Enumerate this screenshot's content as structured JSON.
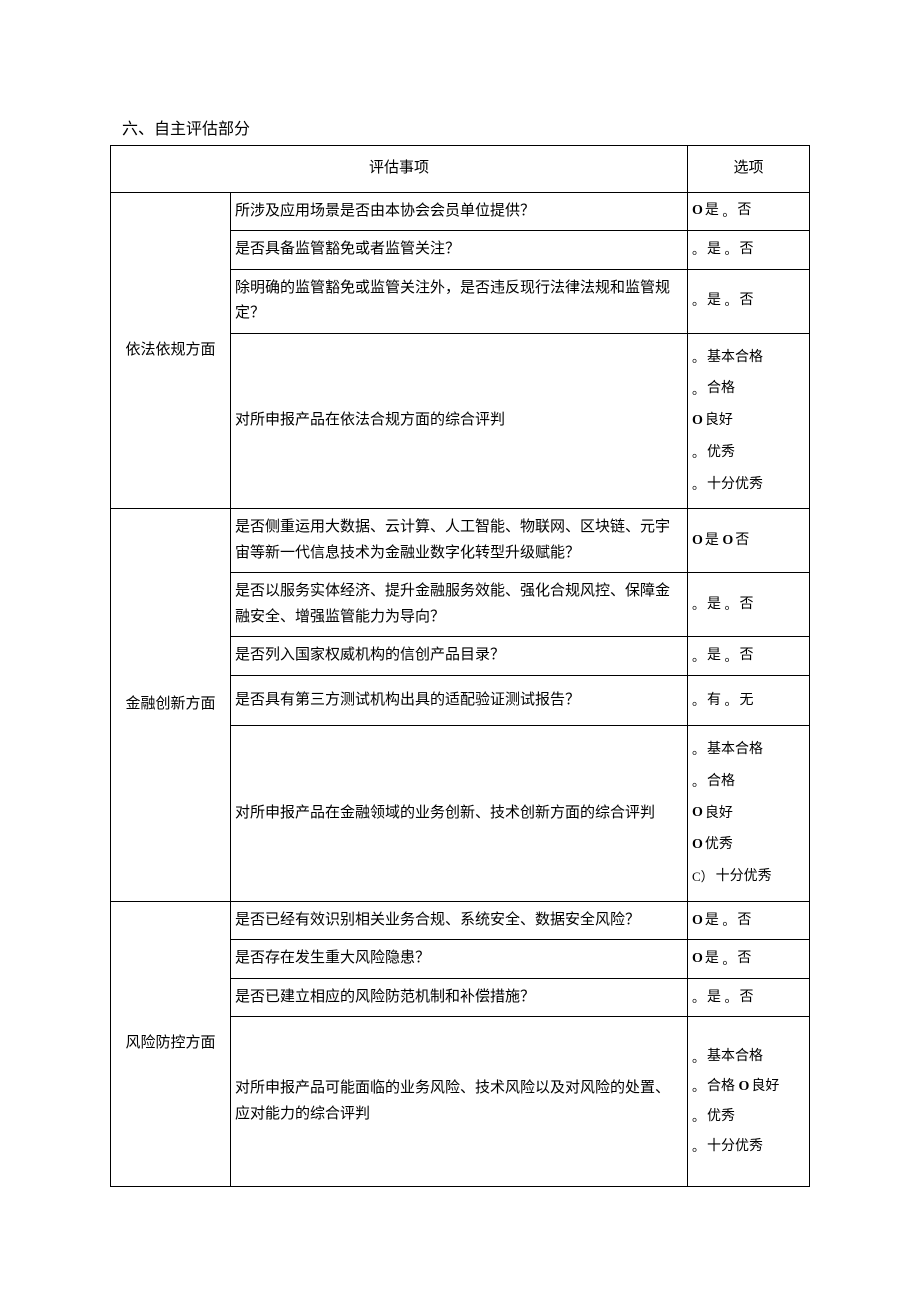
{
  "title": "六、自主评估部分",
  "headers": {
    "item": "评估事项",
    "option": "选项"
  },
  "marks": {
    "boldO": "O",
    "dot": "。",
    "C": "C）"
  },
  "groups": [
    {
      "category": "依法依规方面",
      "rows": [
        {
          "q": "所涉及应用场景是否由本协会会员单位提供？",
          "opts": [
            {
              "m": "boldO",
              "t": "是"
            },
            {
              "m": "dot",
              "t": "否"
            }
          ],
          "layout": "inline"
        },
        {
          "q": "是否具备监管豁免或者监管关注？",
          "opts": [
            {
              "m": "dot",
              "t": "是"
            },
            {
              "m": "dot",
              "t": "否"
            }
          ],
          "layout": "inline"
        },
        {
          "q": "除明确的监管豁免或监管关注外，是否违反现行法律法规和监管规定？",
          "opts": [
            {
              "m": "dot",
              "t": "是"
            },
            {
              "m": "dot",
              "t": "否"
            }
          ],
          "layout": "inline"
        },
        {
          "q": "对所申报产品在依法合规方面的综合评判",
          "opts": [
            {
              "m": "dot",
              "t": "基本合格"
            },
            {
              "m": "dot",
              "t": "合格"
            },
            {
              "m": "boldO",
              "t": "良好"
            },
            {
              "m": "dot",
              "t": "优秀"
            },
            {
              "m": "dot",
              "t": "十分优秀"
            }
          ],
          "layout": "block-tall"
        }
      ]
    },
    {
      "category": "金融创新方面",
      "rows": [
        {
          "q": "是否侧重运用大数据、云计算、人工智能、物联网、区块链、元宇宙等新一代信息技术为金融业数字化转型升级赋能？",
          "opts": [
            {
              "m": "boldO",
              "t": "是"
            },
            {
              "m": "boldO",
              "t": "否"
            }
          ],
          "layout": "inline"
        },
        {
          "q": "是否以服务实体经济、提升金融服务效能、强化合规风控、保障金融安全、增强监管能力为导向？",
          "opts": [
            {
              "m": "dot",
              "t": "是"
            },
            {
              "m": "dot",
              "t": "否"
            }
          ],
          "layout": "inline"
        },
        {
          "q": "是否列入国家权威机构的信创产品目录？",
          "opts": [
            {
              "m": "dot",
              "t": "是"
            },
            {
              "m": "dot",
              "t": "否"
            }
          ],
          "layout": "inline"
        },
        {
          "q": "是否具有第三方测试机构出具的适配验证测试报告？",
          "opts": [
            {
              "m": "dot",
              "t": "有"
            },
            {
              "m": "dot",
              "t": "无"
            }
          ],
          "layout": "inline",
          "minh": "50px"
        },
        {
          "q": "对所申报产品在金融领域的业务创新、技术创新方面的综合评判",
          "opts": [
            {
              "m": "dot",
              "t": "基本合格"
            },
            {
              "m": "dot",
              "t": "合格"
            },
            {
              "m": "boldO",
              "t": "良好"
            },
            {
              "m": "boldO",
              "t": "优秀"
            },
            {
              "m": "C",
              "t": "十分优秀"
            }
          ],
          "layout": "block-tall"
        }
      ]
    },
    {
      "category": "风险防控方面",
      "rows": [
        {
          "q": "是否已经有效识别相关业务合规、系统安全、数据安全风险？",
          "opts": [
            {
              "m": "boldO",
              "t": "是"
            },
            {
              "m": "dot",
              "t": "否"
            }
          ],
          "layout": "inline"
        },
        {
          "q": "是否存在发生重大风险隐患？",
          "opts": [
            {
              "m": "boldO",
              "t": "是"
            },
            {
              "m": "dot",
              "t": "否"
            }
          ],
          "layout": "inline"
        },
        {
          "q": "是否已建立相应的风险防范机制和补偿措施？",
          "opts": [
            {
              "m": "dot",
              "t": "是"
            },
            {
              "m": "dot",
              "t": "否"
            }
          ],
          "layout": "inline"
        },
        {
          "q": "对所申报产品可能面临的业务风险、技术风险以及对风险的处置、应对能力的综合评判",
          "opts": [
            {
              "m": "dot",
              "t": "基本合格"
            },
            {
              "m": "dot",
              "t": "合格",
              "pair": {
                "m": "boldO",
                "t": "良好"
              }
            },
            {
              "m": "dot",
              "t": "优秀"
            },
            {
              "m": "dot",
              "t": "十分优秀"
            }
          ],
          "layout": "block",
          "minh": "170px"
        }
      ]
    }
  ]
}
